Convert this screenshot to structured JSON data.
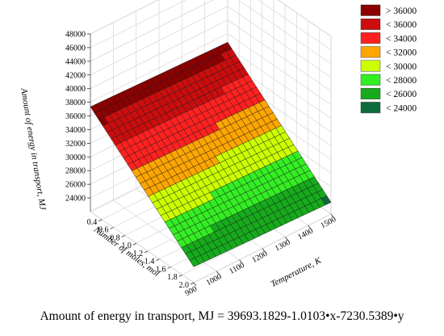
{
  "chart_data": {
    "type": "surface3d",
    "title": "",
    "zlabel": "Amount of energy in transport, MJ",
    "ylabel": "Number of moles, mol",
    "xlabel": "Temperature, K",
    "x": {
      "label": "Temperature, K",
      "range": [
        900,
        1500
      ],
      "ticks": [
        900,
        1000,
        1100,
        1200,
        1300,
        1400,
        1500
      ]
    },
    "y": {
      "label": "Number of moles, mol",
      "range": [
        0.2,
        2.0
      ],
      "ticks": [
        0.4,
        0.6,
        0.8,
        1.0,
        1.2,
        1.4,
        1.6,
        1.8,
        2.0
      ]
    },
    "z": {
      "label": "Amount of energy in transport, MJ",
      "range": [
        22000,
        48000
      ],
      "ticks": [
        24000,
        26000,
        28000,
        30000,
        32000,
        34000,
        36000,
        38000,
        40000,
        42000,
        44000,
        46000,
        48000
      ]
    },
    "equation": "Amount of energy in transport, MJ = 39693.1829-1.0103•x-7230.5389•y",
    "model": {
      "intercept": 39693.1829,
      "coef_x": -1.0103,
      "coef_y": -7230.5389
    },
    "legend": {
      "placement": "top-right",
      "entries": [
        {
          "label": "> 36000",
          "color": "#8b0000"
        },
        {
          "label": "< 36000",
          "color": "#cc0d0d"
        },
        {
          "label": "< 34000",
          "color": "#ff2020"
        },
        {
          "label": "< 32000",
          "color": "#ffa500"
        },
        {
          "label": "< 30000",
          "color": "#ccff00"
        },
        {
          "label": "< 28000",
          "color": "#33ee22"
        },
        {
          "label": "< 26000",
          "color": "#16aa1c"
        },
        {
          "label": "< 24000",
          "color": "#0e6b3c"
        }
      ]
    },
    "grid": true
  }
}
